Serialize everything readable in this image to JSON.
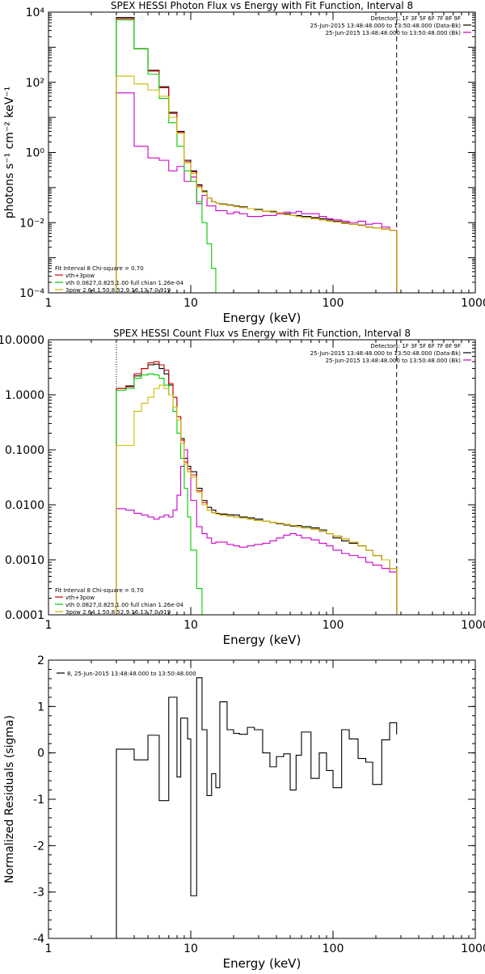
{
  "chart_data": [
    {
      "type": "line",
      "title": "SPEX HESSI Photon Flux vs Energy with Fit Function, Interval 8",
      "xlabel": "Energy (keV)",
      "ylabel": "photons s⁻¹ cm⁻² keV⁻¹",
      "xscale": "log",
      "yscale": "log",
      "xlim": [
        1,
        1000
      ],
      "ylim": [
        0.0001,
        10000
      ],
      "xticks": [
        1,
        10,
        100,
        1000
      ],
      "xtick_labels": [
        "1",
        "10",
        "100",
        "1000"
      ],
      "yticks": [
        0.0001,
        0.01,
        1,
        100,
        10000
      ],
      "ytick_labels": [
        "10⁻⁴",
        "10⁻²",
        "10⁰",
        "10²",
        "10⁴"
      ],
      "vlines": [
        {
          "x": 3,
          "style": "dotted"
        },
        {
          "x": 280,
          "style": "dashed"
        }
      ],
      "legend_topright": {
        "position": "top-right",
        "lines": [
          "Detectors: 1F 3F 5F 6F 7F 8F 9F",
          "25-Jun-2015 13:48:48.000 to 13:50:48.000 (Data-Bk)",
          "25-Jun-2015 13:48:48.000 to 13:50:48.000 (Bk)"
        ],
        "colors": [
          "#000000",
          "#000000",
          "#cc00cc"
        ]
      },
      "legend_bottomleft": {
        "position": "bottom-left",
        "lines": [
          "Fit Interval 8   Chi-square = 0.70",
          "vth+3pow",
          "vth 0.0827,0.825,1.00  full chian 1.26e-04",
          "3pow 2.64,1.50,8.52,9.16,13.7,0.919"
        ],
        "colors": [
          "#000000",
          "#cc0000",
          "#00cc00",
          "#ccb800"
        ]
      },
      "edges": [
        3.0,
        3.5,
        4.0,
        4.5,
        5.0,
        5.5,
        6.0,
        6.5,
        7.0,
        7.5,
        8.0,
        8.5,
        9.0,
        9.5,
        10.0,
        11.0,
        12.0,
        13.0,
        14.0,
        15.0,
        16.0,
        18.0,
        20.0,
        22.0,
        25.0,
        28.0,
        32.0,
        36.0,
        40.0,
        45.0,
        50.0,
        55.0,
        60.0,
        70.0,
        80.0,
        90.0,
        100.0,
        115.0,
        130.0,
        150.0,
        170.0,
        190.0,
        220.0,
        250.0,
        280.0
      ],
      "series": [
        {
          "name": "Data-Bk",
          "color": "#000000",
          "values": [
            7000,
            7000,
            900,
            900,
            220,
            220,
            75,
            75,
            14,
            14,
            4,
            4,
            0.6,
            0.6,
            0.3,
            0.12,
            0.08,
            0.05,
            0.04,
            0.036,
            0.034,
            0.032,
            0.03,
            0.028,
            0.025,
            0.024,
            0.021,
            0.021,
            0.019,
            0.018,
            0.016,
            0.016,
            0.015,
            0.014,
            0.013,
            0.012,
            0.011,
            0.01,
            0.009,
            0.0085,
            0.0075,
            0.007,
            0.0065,
            0.006
          ]
        },
        {
          "name": "Bk",
          "color": "#cc00cc",
          "values": [
            50,
            50,
            1.5,
            1.5,
            0.7,
            0.7,
            0.6,
            0.6,
            0.3,
            0.3,
            0.4,
            0.4,
            0.15,
            0.15,
            0.2,
            0.035,
            0.06,
            0.03,
            0.03,
            0.022,
            0.022,
            0.018,
            0.02,
            0.018,
            0.015,
            0.015,
            0.016,
            0.016,
            0.018,
            0.02,
            0.019,
            0.021,
            0.018,
            0.018,
            0.015,
            0.013,
            0.012,
            0.011,
            0.01,
            0.011,
            0.009,
            0.0095,
            0.0075,
            0.006
          ]
        },
        {
          "name": "vth+3pow",
          "color": "#cc0000",
          "values": [
            6500,
            6500,
            900,
            900,
            210,
            210,
            70,
            70,
            13,
            13,
            3.8,
            3.8,
            0.55,
            0.55,
            0.28,
            0.11,
            0.075,
            0.05,
            0.04,
            0.036,
            0.033,
            0.031,
            0.029,
            0.027,
            0.025,
            0.023,
            0.021,
            0.02,
            0.019,
            0.017,
            0.016,
            0.015,
            0.014,
            0.013,
            0.012,
            0.011,
            0.0105,
            0.0095,
            0.009,
            0.0083,
            0.0075,
            0.007,
            0.0065,
            0.006
          ]
        },
        {
          "name": "vth",
          "color": "#00cc00",
          "values": [
            6000,
            6000,
            900,
            900,
            170,
            170,
            35,
            35,
            7,
            7,
            1.5,
            1.5,
            0.3,
            0.3,
            0.15,
            0.04,
            0.01,
            0.0025,
            0.0005,
            0.0001,
            0.0001,
            0.0001,
            0.0001,
            0.0001,
            0.0001,
            0.0001,
            0.0001,
            0.0001,
            0.0001,
            0.0001,
            0.0001,
            0.0001,
            0.0001,
            0.0001,
            0.0001,
            0.0001,
            0.0001,
            0.0001,
            0.0001,
            0.0001,
            0.0001,
            0.0001,
            0.0001,
            0.0001
          ]
        },
        {
          "name": "3pow",
          "color": "#ccb800",
          "values": [
            150,
            150,
            90,
            90,
            60,
            60,
            40,
            40,
            10,
            10,
            3.5,
            3.5,
            0.5,
            0.5,
            0.25,
            0.1,
            0.075,
            0.05,
            0.04,
            0.036,
            0.033,
            0.031,
            0.029,
            0.027,
            0.025,
            0.023,
            0.021,
            0.02,
            0.019,
            0.017,
            0.016,
            0.015,
            0.014,
            0.013,
            0.012,
            0.011,
            0.0105,
            0.0095,
            0.009,
            0.0083,
            0.0075,
            0.007,
            0.0065,
            0.006
          ]
        }
      ]
    },
    {
      "type": "line",
      "title": "SPEX HESSI Count Flux vs Energy with Fit Function, Interval 8",
      "xlabel": "Energy (keV)",
      "ylabel": "",
      "xscale": "log",
      "yscale": "log",
      "xlim": [
        1,
        1000
      ],
      "ylim": [
        0.0001,
        10
      ],
      "xticks": [
        1,
        10,
        100,
        1000
      ],
      "xtick_labels": [
        "1",
        "10",
        "100",
        "1000"
      ],
      "yticks": [
        0.0001,
        0.001,
        0.01,
        0.1,
        1,
        10
      ],
      "ytick_labels": [
        "0.0001",
        "0.0010",
        "0.0100",
        "0.1000",
        "1.0000",
        "10.0000"
      ],
      "vlines": [
        {
          "x": 3,
          "style": "dotted"
        },
        {
          "x": 280,
          "style": "dashed"
        }
      ],
      "legend_topright": {
        "position": "top-right",
        "lines": [
          "Detectors: 1F 3F 5F 6F 7F 8F 9F",
          "25-Jun-2015 13:48:48.000 to 13:50:48.000 (Data-Bk)",
          "25-Jun-2015 13:48:48.000 to 13:50:48.000 (Bk)"
        ],
        "colors": [
          "#000000",
          "#000000",
          "#cc00cc"
        ]
      },
      "legend_bottomleft": {
        "position": "bottom-left",
        "lines": [
          "Fit Interval 8   Chi-square = 0.70",
          "vth+3pow",
          "vth 0.0827,0.825,1.00  full chian 1.26e-04",
          "3pow 2.64,1.50,8.52,9.16,13.7,0.919"
        ],
        "colors": [
          "#000000",
          "#cc0000",
          "#00cc00",
          "#ccb800"
        ]
      },
      "edges": [
        3.0,
        3.5,
        4.0,
        4.5,
        5.0,
        5.5,
        6.0,
        6.5,
        7.0,
        7.5,
        8.0,
        8.5,
        9.0,
        9.5,
        10.0,
        11.0,
        12.0,
        13.0,
        14.0,
        15.0,
        16.0,
        18.0,
        20.0,
        22.0,
        25.0,
        28.0,
        32.0,
        36.0,
        40.0,
        45.0,
        50.0,
        55.0,
        60.0,
        70.0,
        80.0,
        90.0,
        100.0,
        115.0,
        130.0,
        150.0,
        170.0,
        190.0,
        220.0,
        250.0,
        280.0
      ],
      "series": [
        {
          "name": "Data-Bk",
          "color": "#000000",
          "values": [
            1.3,
            1.45,
            2.2,
            3.0,
            3.5,
            3.6,
            3.0,
            2.4,
            1.5,
            0.9,
            0.4,
            0.16,
            0.07,
            0.05,
            0.04,
            0.02,
            0.012,
            0.009,
            0.008,
            0.007,
            0.0068,
            0.0066,
            0.0065,
            0.006,
            0.0058,
            0.0055,
            0.005,
            0.0048,
            0.0045,
            0.0043,
            0.0041,
            0.0042,
            0.004,
            0.0038,
            0.0035,
            0.003,
            0.0025,
            0.0022,
            0.002,
            0.0018,
            0.0015,
            0.0012,
            0.001,
            0.0007
          ]
        },
        {
          "name": "Bk",
          "color": "#cc00cc",
          "values": [
            0.0085,
            0.008,
            0.007,
            0.0065,
            0.006,
            0.0055,
            0.006,
            0.0065,
            0.006,
            0.008,
            0.015,
            0.05,
            0.1,
            0.04,
            0.012,
            0.004,
            0.003,
            0.0025,
            0.002,
            0.0021,
            0.0021,
            0.0019,
            0.0018,
            0.0017,
            0.0018,
            0.0019,
            0.002,
            0.0022,
            0.0025,
            0.0028,
            0.003,
            0.0028,
            0.0025,
            0.0023,
            0.002,
            0.0018,
            0.0015,
            0.0013,
            0.0012,
            0.0011,
            0.0009,
            0.0008,
            0.0007,
            0.0006
          ]
        },
        {
          "name": "vth+3pow",
          "color": "#cc0000",
          "values": [
            1.3,
            1.4,
            2.4,
            3.0,
            3.8,
            4.0,
            3.5,
            2.8,
            1.6,
            0.9,
            0.4,
            0.15,
            0.06,
            0.045,
            0.035,
            0.018,
            0.011,
            0.008,
            0.0072,
            0.0068,
            0.0065,
            0.0062,
            0.006,
            0.0058,
            0.0055,
            0.0052,
            0.005,
            0.0048,
            0.0046,
            0.0044,
            0.0042,
            0.004,
            0.0038,
            0.0036,
            0.0033,
            0.003,
            0.0027,
            0.0024,
            0.0021,
            0.0018,
            0.0015,
            0.0012,
            0.001,
            0.0007
          ]
        },
        {
          "name": "vth",
          "color": "#00cc00",
          "values": [
            1.2,
            1.3,
            2.0,
            2.3,
            2.4,
            2.3,
            2.0,
            1.5,
            1.0,
            0.5,
            0.2,
            0.07,
            0.02,
            0.006,
            0.0015,
            0.0003,
            0.0001,
            0.0001,
            0.0001,
            0.0001,
            0.0001,
            0.0001,
            0.0001,
            0.0001,
            0.0001,
            0.0001,
            0.0001,
            0.0001,
            0.0001,
            0.0001,
            0.0001,
            0.0001,
            0.0001,
            0.0001,
            0.0001,
            0.0001,
            0.0001,
            0.0001,
            0.0001,
            0.0001,
            0.0001,
            0.0001,
            0.0001,
            0.0001
          ]
        },
        {
          "name": "3pow",
          "color": "#ccb800",
          "values": [
            0.12,
            0.12,
            0.5,
            0.7,
            0.9,
            1.3,
            1.5,
            1.3,
            1.0,
            0.6,
            0.35,
            0.13,
            0.055,
            0.04,
            0.032,
            0.017,
            0.01,
            0.008,
            0.0072,
            0.0068,
            0.0065,
            0.0062,
            0.006,
            0.0058,
            0.0055,
            0.0052,
            0.005,
            0.0048,
            0.0046,
            0.0044,
            0.0042,
            0.004,
            0.0038,
            0.0036,
            0.0033,
            0.003,
            0.0027,
            0.0024,
            0.0021,
            0.0018,
            0.0015,
            0.0012,
            0.001,
            0.0007
          ]
        }
      ]
    },
    {
      "type": "line",
      "title": "",
      "xlabel": "Energy (keV)",
      "ylabel": "Normalized Residuals (sigma)",
      "xscale": "log",
      "yscale": "linear",
      "xlim": [
        1,
        1000
      ],
      "ylim": [
        -4,
        2
      ],
      "xticks": [
        1,
        10,
        100,
        1000
      ],
      "xtick_labels": [
        "1",
        "10",
        "100",
        "1000"
      ],
      "yticks": [
        -4,
        -3,
        -2,
        -1,
        0,
        1,
        2
      ],
      "ytick_labels": [
        "-4",
        "-3",
        "-2",
        "-1",
        "0",
        "1",
        "2"
      ],
      "legend_topleft": {
        "position": "top-left",
        "lines": [
          "8, 25-Jun-2015 13:48:48.000 to 13:50:48.000"
        ],
        "colors": [
          "#000000"
        ]
      },
      "edges": [
        3.0,
        3.5,
        4.0,
        4.5,
        5.0,
        5.5,
        6.0,
        6.5,
        7.0,
        7.5,
        8.0,
        8.5,
        9.0,
        9.5,
        10.0,
        11.0,
        12.0,
        13.0,
        14.0,
        15.0,
        16.0,
        18.0,
        20.0,
        22.0,
        25.0,
        28.0,
        32.0,
        36.0,
        40.0,
        45.0,
        50.0,
        55.0,
        60.0,
        70.0,
        80.0,
        90.0,
        100.0,
        115.0,
        130.0,
        150.0,
        170.0,
        190.0,
        220.0,
        250.0,
        280.0
      ],
      "series": [
        {
          "name": "residuals",
          "color": "#000000",
          "values": [
            0.08,
            0.08,
            -0.15,
            -0.15,
            0.38,
            0.38,
            -1.03,
            -1.03,
            1.2,
            1.2,
            -0.52,
            0.75,
            0.75,
            0.3,
            -3.08,
            1.62,
            0.5,
            -0.92,
            -0.45,
            -0.75,
            1.1,
            0.5,
            0.42,
            0.4,
            0.55,
            0.5,
            0.0,
            -0.3,
            -0.08,
            -0.02,
            -0.8,
            -0.05,
            0.45,
            -0.55,
            0.0,
            -0.38,
            -0.75,
            0.5,
            0.3,
            -0.12,
            -0.2,
            -0.68,
            0.28,
            0.65,
            0.4
          ]
        }
      ]
    }
  ]
}
